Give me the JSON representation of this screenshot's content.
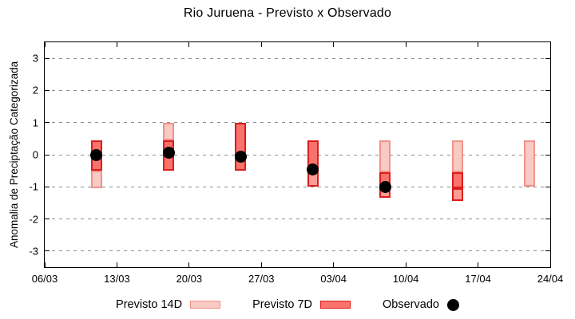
{
  "chart_data": {
    "type": "bar",
    "title": "Rio Juruena - Previsto x Observado",
    "ylabel": "Anomalia de Preciptação Categorizada",
    "xlabel": "",
    "ylim": [
      -3.5,
      3.5
    ],
    "yticks": [
      3,
      2,
      1,
      0,
      -1,
      -2,
      -3
    ],
    "grid": "horizontal-dashed",
    "legend_position": "bottom-center",
    "x_days_span": [
      0,
      49
    ],
    "xticks": [
      {
        "day": 0,
        "label": "06/03"
      },
      {
        "day": 7,
        "label": "13/03"
      },
      {
        "day": 14,
        "label": "20/03"
      },
      {
        "day": 21,
        "label": "27/03"
      },
      {
        "day": 28,
        "label": "03/04"
      },
      {
        "day": 35,
        "label": "10/04"
      },
      {
        "day": 42,
        "label": "17/04"
      },
      {
        "day": 49,
        "label": "24/04"
      }
    ],
    "legend": [
      {
        "label": "Previsto 14D",
        "series": "previsto_14d",
        "swatch": "light-pink-box"
      },
      {
        "label": "Previsto 7D",
        "series": "previsto_7d",
        "swatch": "red-box"
      },
      {
        "label": "Observado",
        "series": "observado",
        "swatch": "black-dot"
      }
    ],
    "colors": {
      "p14_fill": "#f9c9c3",
      "p14_border": "#f0938b",
      "p7_fill": "#f8736c",
      "p7_border": "#dd1c1c",
      "overlap_mid_fill": "#fa9d95",
      "observed": "#000000",
      "grid": "#8c8c8c"
    },
    "bars": [
      {
        "day": 5,
        "previsto_14d": [
          0.45,
          -1.05
        ],
        "previsto_7d": [
          0.45,
          -0.5
        ],
        "observado": 0,
        "segments": [
          {
            "from": 0.45,
            "to": -0.5,
            "style": "dark"
          },
          {
            "from": -0.5,
            "to": -1.05,
            "style": "light"
          }
        ]
      },
      {
        "day": 12,
        "previsto_14d": [
          1.0,
          -0.5
        ],
        "previsto_7d": [
          0.45,
          -0.5
        ],
        "observado": 0.05,
        "segments": [
          {
            "from": 1.0,
            "to": 0.45,
            "style": "light"
          },
          {
            "from": 0.45,
            "to": -0.5,
            "style": "dark"
          }
        ]
      },
      {
        "day": 19,
        "previsto_14d": [
          1.0,
          -0.5
        ],
        "previsto_7d": [
          1.0,
          -0.5
        ],
        "observado": -0.05,
        "segments": [
          {
            "from": 1.0,
            "to": -0.5,
            "style": "dark"
          }
        ]
      },
      {
        "day": 26,
        "previsto_14d": [
          0.45,
          -0.55
        ],
        "previsto_7d": [
          0.45,
          -1.0
        ],
        "observado": -0.45,
        "segments": [
          {
            "from": 0.45,
            "to": -0.55,
            "style": "dark"
          },
          {
            "from": -0.55,
            "to": -1.0,
            "style": "mid"
          }
        ]
      },
      {
        "day": 33,
        "previsto_14d": [
          0.45,
          -1.05
        ],
        "previsto_7d": [
          -0.55,
          -1.35
        ],
        "observado": -1.0,
        "segments": [
          {
            "from": 0.45,
            "to": -0.55,
            "style": "light"
          },
          {
            "from": -0.55,
            "to": -1.05,
            "style": "dark"
          },
          {
            "from": -1.05,
            "to": -1.35,
            "style": "mid"
          }
        ]
      },
      {
        "day": 40,
        "previsto_14d": [
          0.45,
          -1.05
        ],
        "previsto_7d": [
          -0.55,
          -1.45
        ],
        "observado": null,
        "segments": [
          {
            "from": 0.45,
            "to": -0.55,
            "style": "light"
          },
          {
            "from": -0.55,
            "to": -1.05,
            "style": "dark"
          },
          {
            "from": -1.05,
            "to": -1.45,
            "style": "mid"
          }
        ]
      },
      {
        "day": 47,
        "previsto_14d": [
          0.45,
          -1.0
        ],
        "previsto_7d": null,
        "observado": null,
        "segments": [
          {
            "from": 0.45,
            "to": -1.0,
            "style": "light"
          }
        ]
      }
    ]
  }
}
